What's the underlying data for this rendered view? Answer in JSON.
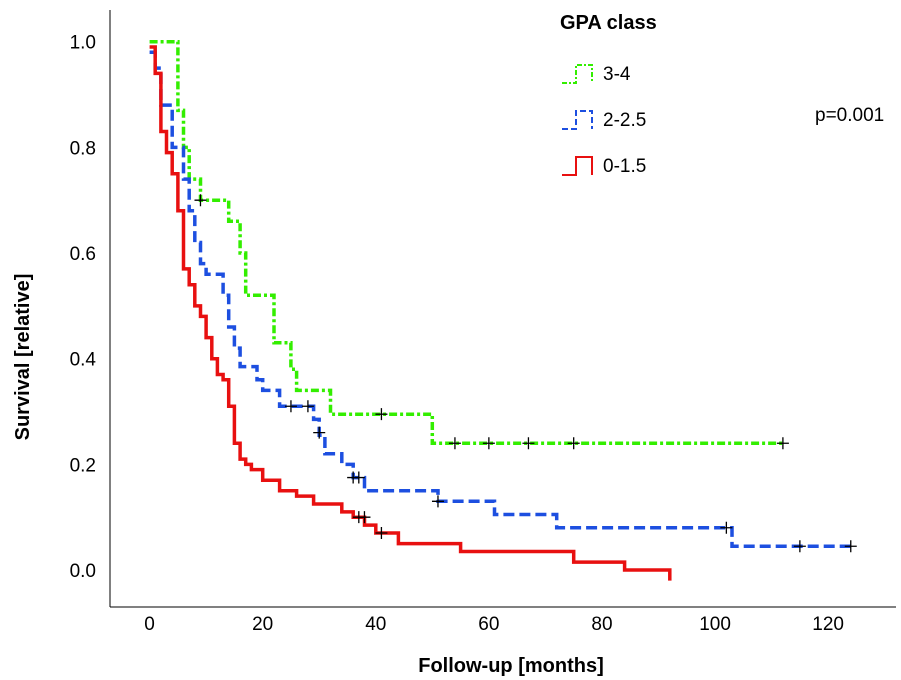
{
  "chart_data": {
    "type": "line",
    "chart_kind": "kaplan-meier step curve",
    "xlabel": "Follow-up [months]",
    "ylabel": "Survival [relative]",
    "xlim": [
      -7,
      132
    ],
    "ylim": [
      -0.07,
      1.06
    ],
    "xticks": [
      0,
      20,
      40,
      60,
      80,
      100,
      120
    ],
    "yticks": [
      0.0,
      0.2,
      0.4,
      0.6,
      0.8,
      1.0
    ],
    "yticks_text": [
      "0.0",
      "0.2",
      "0.4",
      "0.6",
      "0.8",
      "1.0"
    ],
    "grid": false,
    "legend": {
      "title": "GPA class",
      "placement": "top-right"
    },
    "annotation": "p=0.001",
    "series": [
      {
        "name": "3-4",
        "color": "#33ee00",
        "dash": "dash-dot",
        "steps": [
          [
            0,
            1.0
          ],
          [
            5,
            1.0
          ],
          [
            5,
            0.87
          ],
          [
            6,
            0.87
          ],
          [
            6,
            0.8
          ],
          [
            7,
            0.8
          ],
          [
            7,
            0.74
          ],
          [
            9,
            0.74
          ],
          [
            9,
            0.7
          ],
          [
            14,
            0.7
          ],
          [
            14,
            0.66
          ],
          [
            16,
            0.66
          ],
          [
            16,
            0.6
          ],
          [
            17,
            0.6
          ],
          [
            17,
            0.52
          ],
          [
            22,
            0.52
          ],
          [
            22,
            0.43
          ],
          [
            25,
            0.43
          ],
          [
            25,
            0.38
          ],
          [
            26,
            0.38
          ],
          [
            26,
            0.34
          ],
          [
            32,
            0.34
          ],
          [
            32,
            0.295
          ],
          [
            50,
            0.295
          ],
          [
            50,
            0.24
          ],
          [
            112,
            0.24
          ]
        ],
        "censored": [
          [
            9,
            0.7
          ],
          [
            41,
            0.295
          ],
          [
            54,
            0.24
          ],
          [
            60,
            0.24
          ],
          [
            67,
            0.24
          ],
          [
            75,
            0.24
          ],
          [
            112,
            0.24
          ]
        ]
      },
      {
        "name": "2-2.5",
        "color": "#1d4fe0",
        "dash": "dashed",
        "steps": [
          [
            0,
            0.98
          ],
          [
            1,
            0.98
          ],
          [
            1,
            0.95
          ],
          [
            2,
            0.95
          ],
          [
            2,
            0.88
          ],
          [
            4,
            0.88
          ],
          [
            4,
            0.8
          ],
          [
            6,
            0.8
          ],
          [
            6,
            0.74
          ],
          [
            7,
            0.74
          ],
          [
            7,
            0.68
          ],
          [
            8,
            0.68
          ],
          [
            8,
            0.62
          ],
          [
            9,
            0.62
          ],
          [
            9,
            0.58
          ],
          [
            10,
            0.58
          ],
          [
            10,
            0.56
          ],
          [
            13,
            0.56
          ],
          [
            13,
            0.52
          ],
          [
            14,
            0.52
          ],
          [
            14,
            0.46
          ],
          [
            15,
            0.46
          ],
          [
            15,
            0.42
          ],
          [
            16,
            0.42
          ],
          [
            16,
            0.385
          ],
          [
            19,
            0.385
          ],
          [
            19,
            0.36
          ],
          [
            20,
            0.36
          ],
          [
            20,
            0.34
          ],
          [
            23,
            0.34
          ],
          [
            23,
            0.31
          ],
          [
            29,
            0.31
          ],
          [
            29,
            0.285
          ],
          [
            30,
            0.285
          ],
          [
            30,
            0.255
          ],
          [
            31,
            0.255
          ],
          [
            31,
            0.22
          ],
          [
            34,
            0.22
          ],
          [
            34,
            0.2
          ],
          [
            36,
            0.2
          ],
          [
            36,
            0.175
          ],
          [
            38,
            0.175
          ],
          [
            38,
            0.15
          ],
          [
            51,
            0.15
          ],
          [
            51,
            0.13
          ],
          [
            61,
            0.13
          ],
          [
            61,
            0.105
          ],
          [
            72,
            0.105
          ],
          [
            72,
            0.08
          ],
          [
            103,
            0.08
          ],
          [
            103,
            0.045
          ],
          [
            124,
            0.045
          ]
        ],
        "censored": [
          [
            25,
            0.31
          ],
          [
            28,
            0.31
          ],
          [
            30,
            0.26
          ],
          [
            36,
            0.175
          ],
          [
            37,
            0.175
          ],
          [
            51,
            0.13
          ],
          [
            102,
            0.08
          ],
          [
            115,
            0.045
          ],
          [
            124,
            0.045
          ]
        ]
      },
      {
        "name": "0-1.5",
        "color": "#e81010",
        "dash": "solid",
        "steps": [
          [
            0,
            0.99
          ],
          [
            1,
            0.99
          ],
          [
            1,
            0.94
          ],
          [
            2,
            0.94
          ],
          [
            2,
            0.83
          ],
          [
            3,
            0.83
          ],
          [
            3,
            0.79
          ],
          [
            4,
            0.79
          ],
          [
            4,
            0.75
          ],
          [
            5,
            0.75
          ],
          [
            5,
            0.68
          ],
          [
            6,
            0.68
          ],
          [
            6,
            0.57
          ],
          [
            7,
            0.57
          ],
          [
            7,
            0.54
          ],
          [
            8,
            0.54
          ],
          [
            8,
            0.5
          ],
          [
            9,
            0.5
          ],
          [
            9,
            0.48
          ],
          [
            10,
            0.48
          ],
          [
            10,
            0.44
          ],
          [
            11,
            0.44
          ],
          [
            11,
            0.4
          ],
          [
            12,
            0.4
          ],
          [
            12,
            0.37
          ],
          [
            13,
            0.37
          ],
          [
            13,
            0.36
          ],
          [
            14,
            0.36
          ],
          [
            14,
            0.31
          ],
          [
            15,
            0.31
          ],
          [
            15,
            0.24
          ],
          [
            16,
            0.24
          ],
          [
            16,
            0.21
          ],
          [
            17,
            0.21
          ],
          [
            17,
            0.2
          ],
          [
            18,
            0.2
          ],
          [
            18,
            0.19
          ],
          [
            20,
            0.19
          ],
          [
            20,
            0.17
          ],
          [
            23,
            0.17
          ],
          [
            23,
            0.15
          ],
          [
            26,
            0.15
          ],
          [
            26,
            0.14
          ],
          [
            29,
            0.14
          ],
          [
            29,
            0.125
          ],
          [
            34,
            0.125
          ],
          [
            34,
            0.11
          ],
          [
            36,
            0.11
          ],
          [
            36,
            0.1
          ],
          [
            38,
            0.1
          ],
          [
            38,
            0.085
          ],
          [
            40,
            0.085
          ],
          [
            40,
            0.07
          ],
          [
            44,
            0.07
          ],
          [
            44,
            0.05
          ],
          [
            55,
            0.05
          ],
          [
            55,
            0.035
          ],
          [
            75,
            0.035
          ],
          [
            75,
            0.015
          ],
          [
            84,
            0.015
          ],
          [
            84,
            0.0
          ],
          [
            92,
            0.0
          ],
          [
            92,
            -0.02
          ]
        ],
        "censored": [
          [
            37,
            0.1
          ],
          [
            38,
            0.1
          ],
          [
            41,
            0.07
          ]
        ]
      }
    ]
  }
}
